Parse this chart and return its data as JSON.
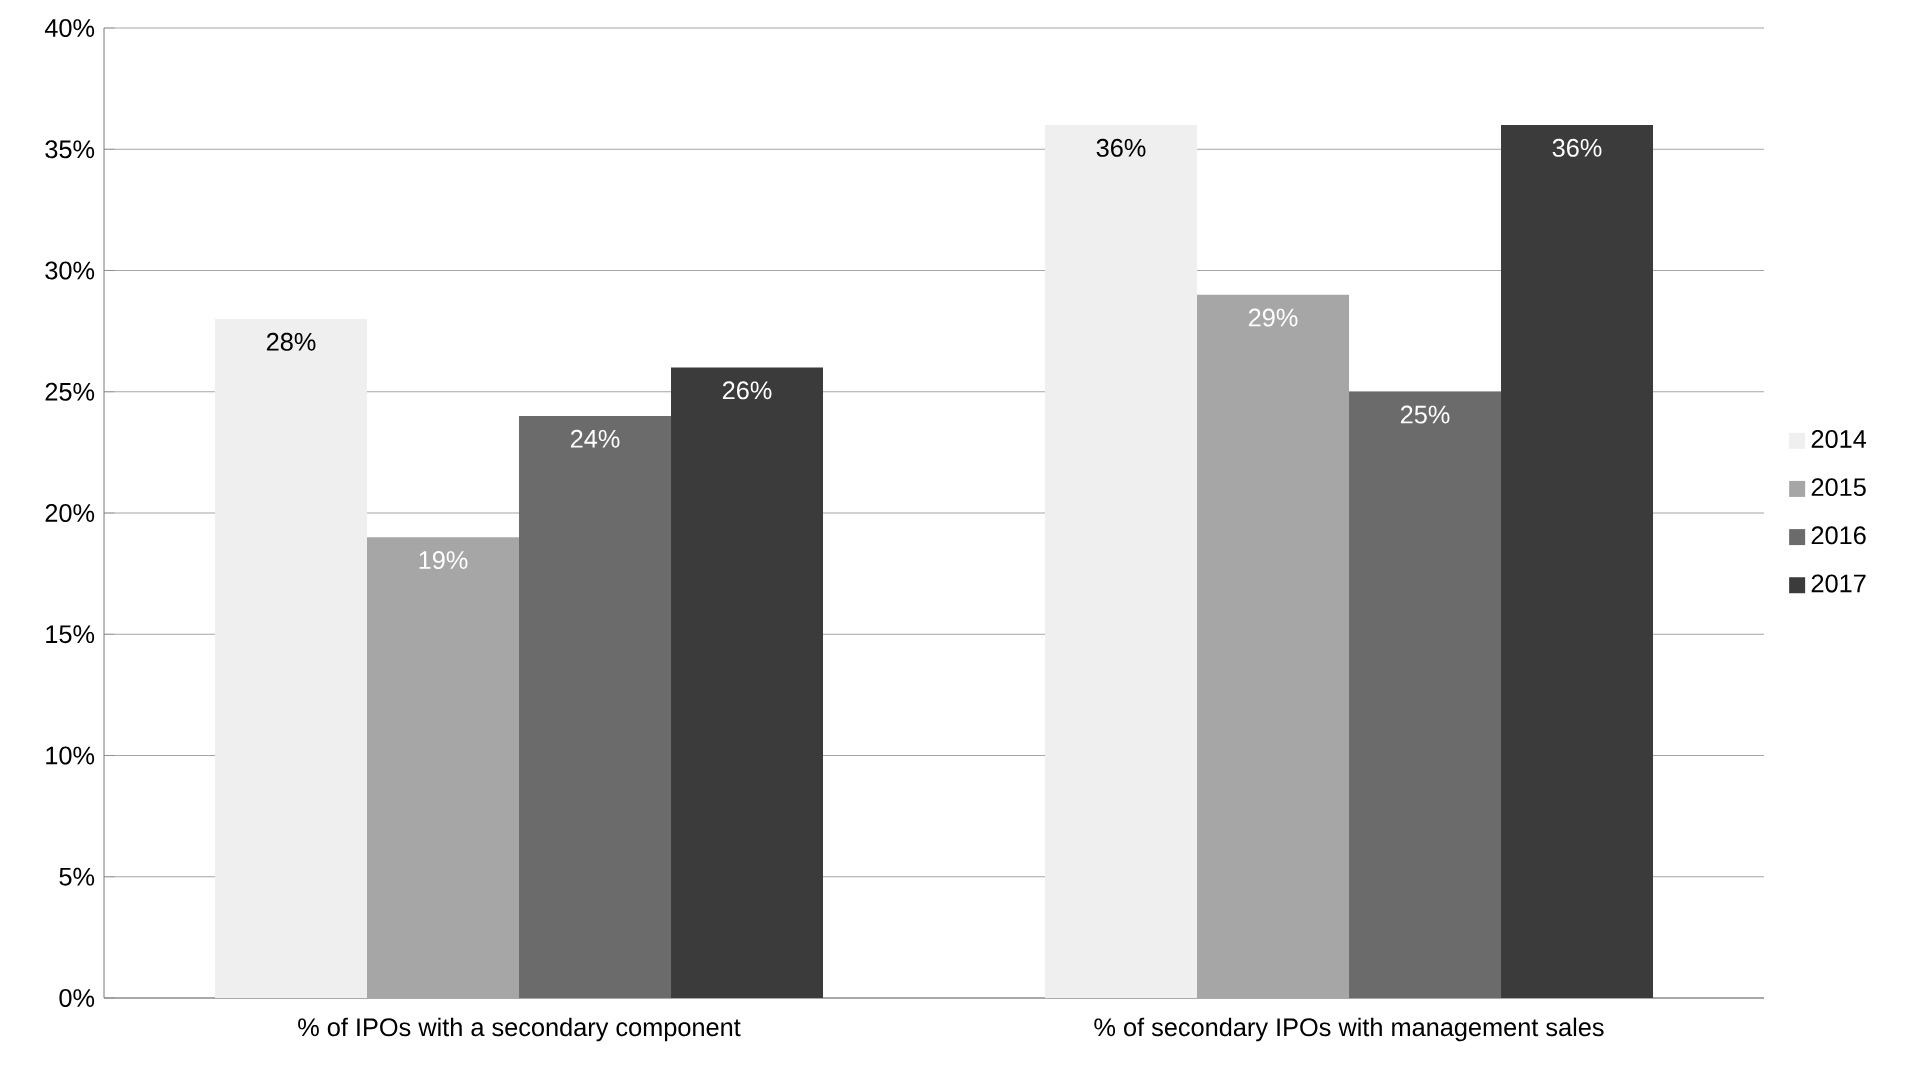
{
  "chart_data": {
    "type": "bar",
    "categories": [
      "% of IPOs with a secondary component",
      "% of secondary IPOs with management sales"
    ],
    "series": [
      {
        "name": "2014",
        "color": "#efefef",
        "values": [
          28,
          36
        ],
        "value_labels": [
          "28%",
          "36%"
        ]
      },
      {
        "name": "2015",
        "color": "#a6a6a6",
        "values": [
          19,
          29
        ],
        "value_labels": [
          "19%",
          "29%"
        ]
      },
      {
        "name": "2016",
        "color": "#6b6b6b",
        "values": [
          24,
          25
        ],
        "value_labels": [
          "24%",
          "25%"
        ]
      },
      {
        "name": "2017",
        "color": "#3b3b3b",
        "values": [
          26,
          36
        ],
        "value_labels": [
          "26%",
          "36%"
        ]
      }
    ],
    "ylim": [
      0,
      40
    ],
    "yticks": [
      {
        "value": 0,
        "label": "0%"
      },
      {
        "value": 5,
        "label": "5%"
      },
      {
        "value": 10,
        "label": "10%"
      },
      {
        "value": 15,
        "label": "15%"
      },
      {
        "value": 20,
        "label": "20%"
      },
      {
        "value": 25,
        "label": "25%"
      },
      {
        "value": 30,
        "label": "30%"
      },
      {
        "value": 35,
        "label": "35%"
      },
      {
        "value": 40,
        "label": "40%"
      }
    ],
    "grid": "y",
    "legend": "right"
  }
}
